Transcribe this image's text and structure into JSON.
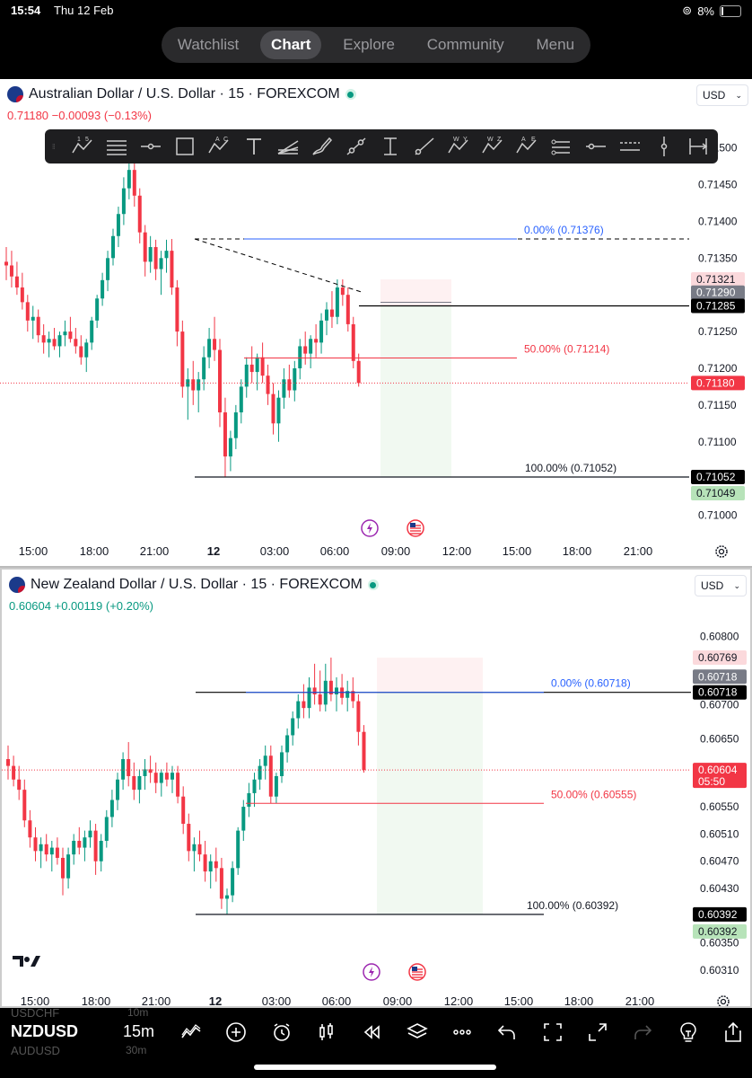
{
  "status_bar": {
    "time": "15:54",
    "date": "Thu 12 Feb",
    "battery": "8%"
  },
  "nav": {
    "tabs": [
      "Watchlist",
      "Chart",
      "Explore",
      "Community",
      "Menu"
    ],
    "active": "Chart"
  },
  "toolbar_icons": [
    "fib-icon",
    "horizontal-lines-icon",
    "horizontal-ray-icon",
    "rectangle-icon",
    "pattern-icon",
    "text-icon",
    "fib-fan-icon",
    "brush-icon",
    "trend-line-icon",
    "price-range-icon",
    "ray-icon",
    "wxy-pattern-icon",
    "wxyz-pattern-icon",
    "abcde-pattern-icon",
    "parallel-lines-icon",
    "horizontal-line-icon",
    "extended-lines-icon",
    "vertical-line-icon",
    "date-range-icon"
  ],
  "charts": [
    {
      "id": "aud",
      "title": "Australian Dollar / U.S. Dollar · 15 · FOREXCOM",
      "quote": {
        "price": "0.71180",
        "change": "−0.00093",
        "pct": "(−0.13%)",
        "color": "#f23645"
      },
      "currency": "USD",
      "price_scale": {
        "top": 0.71535,
        "bottom": 0.70975,
        "labels": [
          "0.71500",
          "0.71450",
          "0.71400",
          "0.71350",
          "0.71250",
          "0.71200",
          "0.71150",
          "0.71100",
          "0.71000"
        ]
      },
      "time_labels": [
        "15:00",
        "18:00",
        "21:00",
        "12",
        "03:00",
        "06:00",
        "09:00",
        "12:00",
        "15:00",
        "18:00",
        "21:00"
      ],
      "price_badges": [
        {
          "value": "0.71321",
          "y": 0.71321,
          "bg": "#fbd9dc",
          "fg": "#131722"
        },
        {
          "value": "0.71290",
          "y": 0.71303,
          "bg": "#787b86",
          "fg": "#ffffff"
        },
        {
          "value": "0.71285",
          "y": 0.71285,
          "bg": "#000000",
          "fg": "#ffffff"
        },
        {
          "value": "0.71180",
          "y": 0.7118,
          "bg": "#f23645",
          "fg": "#ffffff"
        },
        {
          "value": "0.71052",
          "y": 0.71052,
          "bg": "#000000",
          "fg": "#ffffff"
        },
        {
          "value": "0.71049",
          "y": 0.7103,
          "bg": "#b7e3b9",
          "fg": "#131722"
        }
      ],
      "fib_levels": [
        {
          "label": "0.00% (0.71376)",
          "price": 0.71376,
          "color": "#2962ff"
        },
        {
          "label": "50.00% (0.71214)",
          "price": 0.71214,
          "color": "#f23645"
        },
        {
          "label": "100.00% (0.71052)",
          "price": 0.71052,
          "color": "#131722"
        }
      ],
      "current_price": 0.7118,
      "horizontal_line": 0.71285,
      "dashed_level": 0.71376
    },
    {
      "id": "nzd",
      "title": "New Zealand Dollar / U.S. Dollar · 15 · FOREXCOM",
      "quote": {
        "price": "0.60604",
        "change": "+0.00119",
        "pct": "(+0.20%)",
        "color": "#089981"
      },
      "currency": "USD",
      "price_scale": {
        "top": 0.60835,
        "bottom": 0.60285,
        "labels": [
          "0.60800",
          "0.60700",
          "0.60650",
          "0.60550",
          "0.60510",
          "0.60470",
          "0.60430",
          "0.60350",
          "0.60310"
        ]
      },
      "time_labels": [
        "15:00",
        "18:00",
        "21:00",
        "12",
        "03:00",
        "06:00",
        "09:00",
        "12:00",
        "15:00",
        "18:00",
        "21:00"
      ],
      "price_badges": [
        {
          "value": "0.60769",
          "y": 0.60769,
          "bg": "#fbd9dc",
          "fg": "#131722"
        },
        {
          "value": "0.60718",
          "y": 0.60741,
          "bg": "#787b86",
          "fg": "#ffffff"
        },
        {
          "value": "0.60718",
          "y": 0.60718,
          "bg": "#000000",
          "fg": "#ffffff"
        },
        {
          "value": "0.60604",
          "sub": "05:50",
          "y": 0.60604,
          "bg": "#f23645",
          "fg": "#ffffff"
        },
        {
          "value": "0.60392",
          "y": 0.60392,
          "bg": "#000000",
          "fg": "#ffffff"
        },
        {
          "value": "0.60392",
          "y": 0.60367,
          "bg": "#b7e3b9",
          "fg": "#131722"
        }
      ],
      "fib_levels": [
        {
          "label": "0.00% (0.60718)",
          "price": 0.60718,
          "color": "#2962ff"
        },
        {
          "label": "50.00% (0.60555)",
          "price": 0.60555,
          "color": "#f23645"
        },
        {
          "label": "100.00% (0.60392)",
          "price": 0.60392,
          "color": "#131722"
        }
      ],
      "current_price": 0.60604,
      "horizontal_line": 0.60718
    }
  ],
  "chart_data": [
    {
      "type": "candlestick",
      "title": "Australian Dollar / U.S. Dollar · 15 · FOREXCOM",
      "ylim": [
        0.70975,
        0.71535
      ],
      "ohlc": [
        [
          0.71345,
          0.71365,
          0.7132,
          0.7134
        ],
        [
          0.7134,
          0.7136,
          0.7131,
          0.71325
        ],
        [
          0.71325,
          0.71345,
          0.713,
          0.7131
        ],
        [
          0.7131,
          0.7133,
          0.7128,
          0.7129
        ],
        [
          0.7129,
          0.713,
          0.7125,
          0.71265
        ],
        [
          0.71265,
          0.71285,
          0.7124,
          0.7127
        ],
        [
          0.7127,
          0.7128,
          0.71235,
          0.71245
        ],
        [
          0.71245,
          0.7126,
          0.7122,
          0.71235
        ],
        [
          0.71235,
          0.7125,
          0.71215,
          0.7124
        ],
        [
          0.7124,
          0.71255,
          0.71225,
          0.7123
        ],
        [
          0.7123,
          0.7125,
          0.71215,
          0.71245
        ],
        [
          0.71245,
          0.71265,
          0.7123,
          0.7125
        ],
        [
          0.7125,
          0.7127,
          0.71235,
          0.7124
        ],
        [
          0.7124,
          0.71255,
          0.7122,
          0.7123
        ],
        [
          0.7123,
          0.71245,
          0.71205,
          0.71215
        ],
        [
          0.71215,
          0.7124,
          0.71195,
          0.71235
        ],
        [
          0.71235,
          0.7127,
          0.71225,
          0.71265
        ],
        [
          0.71265,
          0.713,
          0.71255,
          0.71295
        ],
        [
          0.71295,
          0.7133,
          0.71285,
          0.7132
        ],
        [
          0.7132,
          0.7136,
          0.71305,
          0.7135
        ],
        [
          0.7135,
          0.7139,
          0.7134,
          0.7138
        ],
        [
          0.7138,
          0.7142,
          0.71365,
          0.7141
        ],
        [
          0.7141,
          0.7146,
          0.71395,
          0.71445
        ],
        [
          0.71445,
          0.7149,
          0.7143,
          0.7147
        ],
        [
          0.7147,
          0.7148,
          0.7142,
          0.71435
        ],
        [
          0.71435,
          0.71445,
          0.7137,
          0.71385
        ],
        [
          0.71385,
          0.71395,
          0.71325,
          0.71345
        ],
        [
          0.71345,
          0.7138,
          0.7133,
          0.71365
        ],
        [
          0.71365,
          0.71375,
          0.7132,
          0.71335
        ],
        [
          0.71335,
          0.7136,
          0.713,
          0.7135
        ],
        [
          0.7135,
          0.71375,
          0.7133,
          0.7136
        ],
        [
          0.7136,
          0.71376,
          0.713,
          0.7131
        ],
        [
          0.7131,
          0.7132,
          0.7123,
          0.7125
        ],
        [
          0.7125,
          0.71265,
          0.7116,
          0.71175
        ],
        [
          0.71175,
          0.712,
          0.7113,
          0.71185
        ],
        [
          0.71185,
          0.7121,
          0.7115,
          0.7117
        ],
        [
          0.7117,
          0.71195,
          0.7114,
          0.71185
        ],
        [
          0.71185,
          0.7123,
          0.7117,
          0.71215
        ],
        [
          0.71215,
          0.71255,
          0.712,
          0.7124
        ],
        [
          0.7124,
          0.7127,
          0.7121,
          0.71225
        ],
        [
          0.71225,
          0.7124,
          0.7112,
          0.7114
        ],
        [
          0.7114,
          0.7116,
          0.71052,
          0.7108
        ],
        [
          0.7108,
          0.71115,
          0.7106,
          0.71105
        ],
        [
          0.71105,
          0.7115,
          0.7109,
          0.7114
        ],
        [
          0.7114,
          0.71185,
          0.71125,
          0.71175
        ],
        [
          0.71175,
          0.71215,
          0.7116,
          0.71205
        ],
        [
          0.71205,
          0.7123,
          0.7118,
          0.71195
        ],
        [
          0.71195,
          0.7122,
          0.7117,
          0.71215
        ],
        [
          0.71215,
          0.71235,
          0.7118,
          0.7119
        ],
        [
          0.7119,
          0.71205,
          0.7115,
          0.71165
        ],
        [
          0.71165,
          0.7118,
          0.7111,
          0.71125
        ],
        [
          0.71125,
          0.7117,
          0.711,
          0.7116
        ],
        [
          0.7116,
          0.712,
          0.71145,
          0.71185
        ],
        [
          0.71185,
          0.71205,
          0.7116,
          0.7117
        ],
        [
          0.7117,
          0.7121,
          0.71155,
          0.712
        ],
        [
          0.712,
          0.7124,
          0.71185,
          0.7123
        ],
        [
          0.7123,
          0.7125,
          0.71205,
          0.7122
        ],
        [
          0.7122,
          0.71245,
          0.712,
          0.7124
        ],
        [
          0.7124,
          0.7126,
          0.71215,
          0.71235
        ],
        [
          0.71235,
          0.71275,
          0.7122,
          0.71265
        ],
        [
          0.71265,
          0.7129,
          0.71245,
          0.7128
        ],
        [
          0.7128,
          0.71305,
          0.71255,
          0.7127
        ],
        [
          0.7127,
          0.71321,
          0.7126,
          0.7131
        ],
        [
          0.7131,
          0.71321,
          0.71285,
          0.713
        ],
        [
          0.713,
          0.7131,
          0.7125,
          0.7126
        ],
        [
          0.7126,
          0.7127,
          0.712,
          0.7121
        ],
        [
          0.7121,
          0.7122,
          0.71175,
          0.7118
        ]
      ]
    },
    {
      "type": "candlestick",
      "title": "New Zealand Dollar / U.S. Dollar · 15 · FOREXCOM",
      "ylim": [
        0.60285,
        0.60835
      ],
      "ohlc": [
        [
          0.6062,
          0.6064,
          0.6059,
          0.6061
        ],
        [
          0.6061,
          0.60625,
          0.6058,
          0.6059
        ],
        [
          0.6059,
          0.6061,
          0.6056,
          0.60575
        ],
        [
          0.60575,
          0.6059,
          0.6052,
          0.6053
        ],
        [
          0.6053,
          0.60545,
          0.6049,
          0.60505
        ],
        [
          0.60505,
          0.6052,
          0.6047,
          0.60485
        ],
        [
          0.60485,
          0.60505,
          0.6046,
          0.60495
        ],
        [
          0.60495,
          0.6051,
          0.6047,
          0.6048
        ],
        [
          0.6048,
          0.605,
          0.60455,
          0.6049
        ],
        [
          0.6049,
          0.60505,
          0.60465,
          0.60475
        ],
        [
          0.60475,
          0.6049,
          0.6042,
          0.60445
        ],
        [
          0.60445,
          0.6049,
          0.6043,
          0.6048
        ],
        [
          0.6048,
          0.6051,
          0.60465,
          0.605
        ],
        [
          0.605,
          0.6052,
          0.6048,
          0.6049
        ],
        [
          0.6049,
          0.60515,
          0.6047,
          0.60505
        ],
        [
          0.60505,
          0.6053,
          0.6049,
          0.60515
        ],
        [
          0.60515,
          0.60525,
          0.6045,
          0.6047
        ],
        [
          0.6047,
          0.6051,
          0.60455,
          0.605
        ],
        [
          0.605,
          0.60545,
          0.6049,
          0.60535
        ],
        [
          0.60535,
          0.60575,
          0.6052,
          0.6056
        ],
        [
          0.6056,
          0.606,
          0.60545,
          0.6059
        ],
        [
          0.6059,
          0.6063,
          0.60575,
          0.6062
        ],
        [
          0.6062,
          0.60645,
          0.6058,
          0.60595
        ],
        [
          0.60595,
          0.60615,
          0.6056,
          0.60575
        ],
        [
          0.60575,
          0.60605,
          0.60555,
          0.60595
        ],
        [
          0.60595,
          0.6062,
          0.60575,
          0.60605
        ],
        [
          0.60605,
          0.60625,
          0.60585,
          0.606
        ],
        [
          0.606,
          0.60615,
          0.6057,
          0.60585
        ],
        [
          0.60585,
          0.60605,
          0.60565,
          0.606
        ],
        [
          0.606,
          0.60615,
          0.6058,
          0.6059
        ],
        [
          0.6059,
          0.6061,
          0.6057,
          0.606
        ],
        [
          0.606,
          0.6061,
          0.60555,
          0.60565
        ],
        [
          0.60565,
          0.6058,
          0.6051,
          0.60525
        ],
        [
          0.60525,
          0.6054,
          0.6047,
          0.60485
        ],
        [
          0.60485,
          0.60505,
          0.60455,
          0.60495
        ],
        [
          0.60495,
          0.60515,
          0.6047,
          0.6048
        ],
        [
          0.6048,
          0.605,
          0.6044,
          0.60455
        ],
        [
          0.60455,
          0.6048,
          0.6043,
          0.6047
        ],
        [
          0.6047,
          0.6049,
          0.6044,
          0.6046
        ],
        [
          0.6046,
          0.60475,
          0.604,
          0.60415
        ],
        [
          0.60415,
          0.6043,
          0.60392,
          0.6042
        ],
        [
          0.6042,
          0.6047,
          0.6041,
          0.6046
        ],
        [
          0.6046,
          0.6052,
          0.6045,
          0.60515
        ],
        [
          0.60515,
          0.6056,
          0.605,
          0.6055
        ],
        [
          0.6055,
          0.60585,
          0.60535,
          0.6057
        ],
        [
          0.6057,
          0.606,
          0.6055,
          0.6059
        ],
        [
          0.6059,
          0.6062,
          0.60575,
          0.6061
        ],
        [
          0.6061,
          0.6064,
          0.6059,
          0.60625
        ],
        [
          0.60625,
          0.6064,
          0.60555,
          0.60565
        ],
        [
          0.60565,
          0.606,
          0.60555,
          0.60595
        ],
        [
          0.60595,
          0.6064,
          0.60585,
          0.6063
        ],
        [
          0.6063,
          0.60665,
          0.60615,
          0.60655
        ],
        [
          0.60655,
          0.6069,
          0.6064,
          0.6068
        ],
        [
          0.6068,
          0.60715,
          0.60665,
          0.60705
        ],
        [
          0.60705,
          0.6073,
          0.6068,
          0.60695
        ],
        [
          0.60695,
          0.6074,
          0.6068,
          0.60725
        ],
        [
          0.60725,
          0.6076,
          0.607,
          0.60715
        ],
        [
          0.60715,
          0.6075,
          0.6069,
          0.607
        ],
        [
          0.607,
          0.6076,
          0.6069,
          0.60735
        ],
        [
          0.60735,
          0.60769,
          0.60705,
          0.60715
        ],
        [
          0.60715,
          0.6074,
          0.6069,
          0.60725
        ],
        [
          0.60725,
          0.60745,
          0.607,
          0.6071
        ],
        [
          0.6071,
          0.60735,
          0.6069,
          0.6072
        ],
        [
          0.6072,
          0.6074,
          0.60695,
          0.60705
        ],
        [
          0.60705,
          0.60715,
          0.6064,
          0.6066
        ],
        [
          0.6066,
          0.6067,
          0.606,
          0.60604
        ]
      ]
    }
  ],
  "bottom_bar": {
    "symbol": "NZDUSD",
    "symbol_prev": "USDCHF",
    "symbol_next": "AUDUSD",
    "interval": "15m",
    "interval_prev": "10m",
    "interval_next": "30m"
  }
}
